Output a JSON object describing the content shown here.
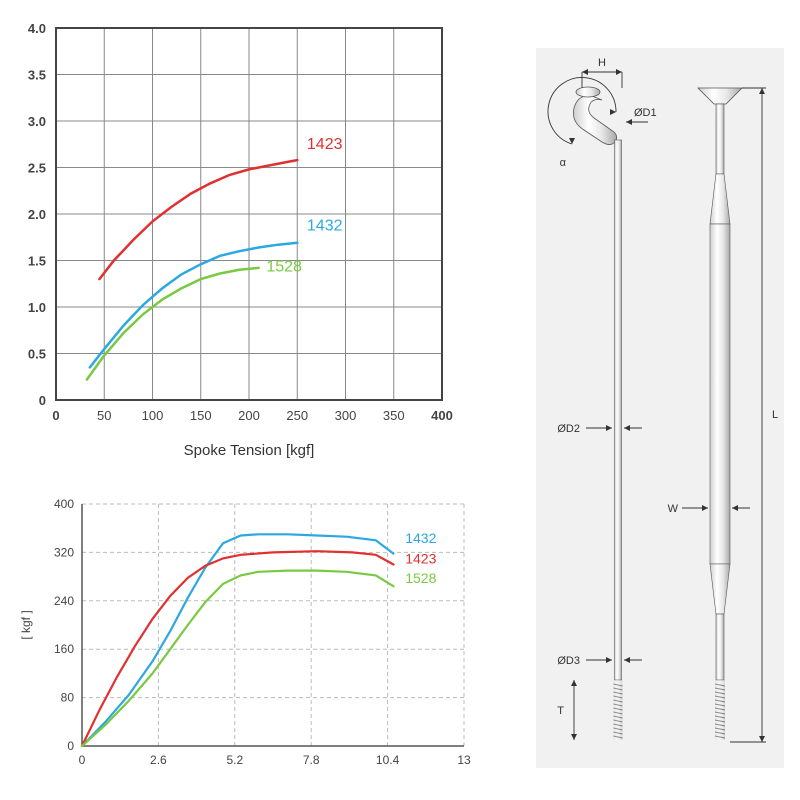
{
  "chart1": {
    "type": "line",
    "title_fontsize": 15,
    "xlabel": "Spoke Tension [kgf]",
    "ylabel": "",
    "xlim": [
      0,
      400
    ],
    "ylim": [
      0,
      4.0
    ],
    "xticks": [
      0,
      50,
      100,
      150,
      200,
      250,
      300,
      350,
      400
    ],
    "yticks": [
      0,
      0.5,
      1.0,
      1.5,
      2.0,
      2.5,
      3.0,
      3.5,
      4.0
    ],
    "ytick_labels": [
      "0",
      "0.5",
      "1.0",
      "1.5",
      "2.0",
      "2.5",
      "3.0",
      "3.5",
      "4.0"
    ],
    "grid_color": "#888888",
    "grid_width": 1,
    "border_color": "#444444",
    "border_width": 2,
    "background_color": "#ffffff",
    "label_fontsize": 15,
    "tick_fontsize": 13,
    "series": [
      {
        "name": "1423",
        "color": "#e03030",
        "width": 2.5,
        "points": [
          [
            45,
            1.3
          ],
          [
            60,
            1.5
          ],
          [
            80,
            1.72
          ],
          [
            100,
            1.92
          ],
          [
            120,
            2.08
          ],
          [
            140,
            2.22
          ],
          [
            160,
            2.33
          ],
          [
            180,
            2.42
          ],
          [
            200,
            2.48
          ],
          [
            220,
            2.52
          ],
          [
            240,
            2.56
          ],
          [
            250,
            2.58
          ]
        ],
        "label_x": 260,
        "label_y": 2.7
      },
      {
        "name": "1432",
        "color": "#2ca8e0",
        "width": 2.5,
        "points": [
          [
            35,
            0.35
          ],
          [
            50,
            0.55
          ],
          [
            70,
            0.8
          ],
          [
            90,
            1.02
          ],
          [
            110,
            1.2
          ],
          [
            130,
            1.35
          ],
          [
            150,
            1.46
          ],
          [
            170,
            1.55
          ],
          [
            190,
            1.6
          ],
          [
            210,
            1.64
          ],
          [
            230,
            1.67
          ],
          [
            250,
            1.69
          ]
        ],
        "label_x": 260,
        "label_y": 1.82
      },
      {
        "name": "1528",
        "color": "#7ac943",
        "width": 2.5,
        "points": [
          [
            32,
            0.22
          ],
          [
            50,
            0.48
          ],
          [
            70,
            0.72
          ],
          [
            90,
            0.92
          ],
          [
            110,
            1.08
          ],
          [
            130,
            1.2
          ],
          [
            150,
            1.3
          ],
          [
            170,
            1.36
          ],
          [
            190,
            1.4
          ],
          [
            210,
            1.42
          ]
        ],
        "label_x": 218,
        "label_y": 1.38
      }
    ]
  },
  "chart2": {
    "type": "line",
    "xlabel": "",
    "ylabel": "[ kgf ]",
    "xlim": [
      0,
      13.0
    ],
    "ylim": [
      0,
      400
    ],
    "xticks": [
      0,
      2.6,
      5.2,
      7.8,
      10.4,
      13.0
    ],
    "yticks": [
      0,
      80,
      160,
      240,
      320,
      400
    ],
    "grid_color": "#bbbbbb",
    "grid_dash": "4,3",
    "grid_width": 1,
    "border_color": "#555555",
    "border_width": 1.5,
    "background_color": "#ffffff",
    "tick_fontsize": 12,
    "label_fontsize": 12,
    "series": [
      {
        "name": "1432",
        "color": "#2ca8e0",
        "width": 2.2,
        "points": [
          [
            0,
            0
          ],
          [
            0.8,
            40
          ],
          [
            1.6,
            85
          ],
          [
            2.4,
            140
          ],
          [
            3.0,
            190
          ],
          [
            3.6,
            245
          ],
          [
            4.2,
            295
          ],
          [
            4.8,
            335
          ],
          [
            5.4,
            348
          ],
          [
            6.0,
            350
          ],
          [
            7.0,
            350
          ],
          [
            8.0,
            348
          ],
          [
            9.0,
            346
          ],
          [
            10.0,
            340
          ],
          [
            10.6,
            318
          ]
        ],
        "label_x": 11.0,
        "label_y": 342
      },
      {
        "name": "1423",
        "color": "#e03030",
        "width": 2.2,
        "points": [
          [
            0,
            0
          ],
          [
            0.6,
            60
          ],
          [
            1.2,
            115
          ],
          [
            1.8,
            165
          ],
          [
            2.4,
            210
          ],
          [
            3.0,
            248
          ],
          [
            3.6,
            278
          ],
          [
            4.2,
            298
          ],
          [
            4.8,
            310
          ],
          [
            5.4,
            316
          ],
          [
            6.5,
            320
          ],
          [
            8.0,
            322
          ],
          [
            9.2,
            320
          ],
          [
            10.0,
            316
          ],
          [
            10.6,
            300
          ]
        ],
        "label_x": 11.0,
        "label_y": 308
      },
      {
        "name": "1528",
        "color": "#7ac943",
        "width": 2.2,
        "points": [
          [
            0,
            0
          ],
          [
            0.8,
            35
          ],
          [
            1.6,
            75
          ],
          [
            2.4,
            120
          ],
          [
            3.0,
            160
          ],
          [
            3.6,
            200
          ],
          [
            4.2,
            238
          ],
          [
            4.8,
            268
          ],
          [
            5.4,
            282
          ],
          [
            6.0,
            288
          ],
          [
            7.0,
            290
          ],
          [
            8.0,
            290
          ],
          [
            9.0,
            288
          ],
          [
            10.0,
            282
          ],
          [
            10.6,
            264
          ]
        ],
        "label_x": 11.0,
        "label_y": 276
      }
    ]
  },
  "diagram": {
    "background_color": "#f1f1f1",
    "spoke_fill_light": "#f5f5f5",
    "spoke_fill_dark": "#bfbfbf",
    "outline_color": "#555555",
    "arrow_color": "#333333",
    "label_fontsize": 11,
    "labels": {
      "H": "H",
      "alpha": "α",
      "OD1": "ØD1",
      "OD2": "ØD2",
      "OD3": "ØD3",
      "W": "W",
      "L": "L",
      "T": "T"
    }
  }
}
